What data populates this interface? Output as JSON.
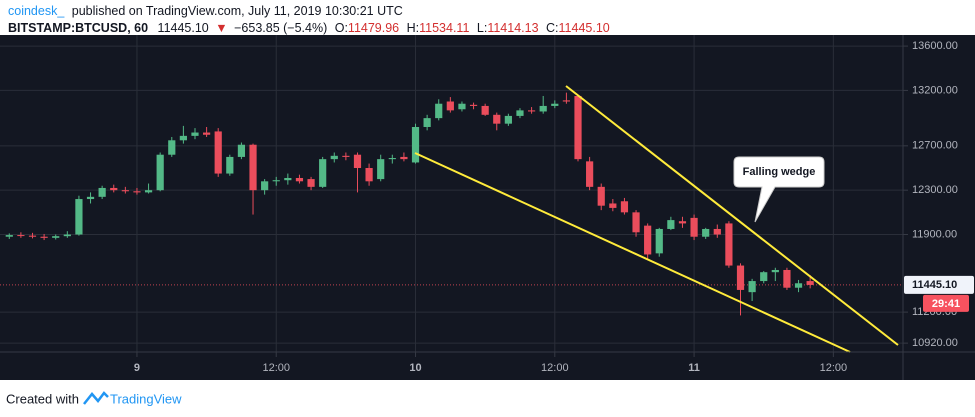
{
  "header": {
    "author": "coindesk_",
    "published": "published on TradingView.com, July 11, 2019 10:30:21 UTC",
    "symbol": "BITSTAMP:BTCUSD, 60",
    "last": "11445.10",
    "arrow": "▼",
    "change": "−653.85 (−5.4%)",
    "ohlc_labels": [
      "O:",
      "H:",
      "L:",
      "C:"
    ],
    "ohlc_values": [
      "11479.96",
      "11534.11",
      "11414.13",
      "11445.10"
    ]
  },
  "footer": {
    "created": "Created with",
    "brand": "TradingView"
  },
  "chart_data": {
    "type": "candlestick",
    "x": [
      -11,
      -10,
      -9,
      -8,
      -7,
      -6,
      -5,
      -4,
      -3,
      -2,
      -1,
      0,
      1,
      2,
      3,
      4,
      5,
      6,
      7,
      8,
      9,
      10,
      11,
      12,
      13,
      14,
      15,
      16,
      17,
      18,
      19,
      20,
      21,
      22,
      23,
      24,
      25,
      26,
      27,
      28,
      29,
      30,
      31,
      32,
      33,
      34,
      35,
      36,
      37,
      38,
      39,
      40,
      41,
      42,
      43,
      44,
      45,
      46,
      47,
      48,
      49,
      50,
      51,
      52,
      53,
      54,
      55,
      56,
      57,
      58
    ],
    "open": [
      11880,
      11895,
      11890,
      11880,
      11870,
      11885,
      11900,
      12220,
      12240,
      12320,
      12300,
      12290,
      12280,
      12300,
      12620,
      12750,
      12790,
      12820,
      12830,
      12450,
      12600,
      12710,
      12300,
      12380,
      12390,
      12410,
      12400,
      12330,
      12580,
      12610,
      12620,
      12500,
      12400,
      12580,
      12600,
      12550,
      12870,
      12950,
      13100,
      13030,
      13070,
      13060,
      12980,
      12900,
      12970,
      13020,
      13010,
      13060,
      13110,
      13150,
      12560,
      12330,
      12180,
      12200,
      12100,
      11980,
      11730,
      11950,
      12020,
      12050,
      11880,
      11950,
      12000,
      11620,
      11380,
      11480,
      11560,
      11580,
      11420,
      11479.96
    ],
    "high": [
      11910,
      11920,
      11915,
      11905,
      11900,
      11930,
      12250,
      12280,
      12340,
      12350,
      12330,
      12320,
      12360,
      12640,
      12780,
      12880,
      12860,
      12870,
      12860,
      12620,
      12730,
      12720,
      12400,
      12420,
      12450,
      12440,
      12420,
      12600,
      12640,
      12640,
      12640,
      12540,
      12620,
      12620,
      12640,
      12900,
      12980,
      13120,
      13140,
      13100,
      13090,
      13080,
      13000,
      12990,
      13040,
      13050,
      13150,
      13110,
      13180,
      13160,
      12600,
      12360,
      12220,
      12230,
      12120,
      12000,
      11960,
      12060,
      12060,
      12080,
      11960,
      11990,
      12020,
      11640,
      11500,
      11570,
      11600,
      11600,
      11490,
      11534.11
    ],
    "low": [
      11860,
      11870,
      11865,
      11850,
      11855,
      11870,
      11890,
      12180,
      12220,
      12280,
      12270,
      12260,
      12270,
      12290,
      12600,
      12720,
      12760,
      12780,
      12420,
      12430,
      12580,
      12080,
      12260,
      12340,
      12350,
      12360,
      12300,
      12320,
      12550,
      12570,
      12280,
      12340,
      12380,
      12540,
      12560,
      12540,
      12840,
      12930,
      13000,
      13010,
      13030,
      12970,
      12840,
      12880,
      12950,
      12990,
      12990,
      13040,
      13080,
      12560,
      12300,
      12120,
      12110,
      12080,
      11880,
      11680,
      11700,
      11940,
      11960,
      11850,
      11860,
      11870,
      11600,
      11170,
      11300,
      11460,
      11480,
      11400,
      11380,
      11414.13
    ],
    "close": [
      11895,
      11890,
      11880,
      11870,
      11885,
      11900,
      12220,
      12240,
      12320,
      12300,
      12290,
      12280,
      12300,
      12620,
      12750,
      12790,
      12820,
      12800,
      12450,
      12600,
      12710,
      12300,
      12380,
      12390,
      12410,
      12380,
      12330,
      12580,
      12610,
      12600,
      12500,
      12380,
      12580,
      12590,
      12580,
      12870,
      12950,
      13080,
      13020,
      13080,
      13060,
      12980,
      12900,
      12970,
      13020,
      13010,
      13060,
      13080,
      13100,
      12580,
      12330,
      12160,
      12140,
      12100,
      11920,
      11720,
      11950,
      12030,
      12000,
      11880,
      11950,
      11900,
      11620,
      11400,
      11480,
      11560,
      11580,
      11420,
      11460,
      11445.1
    ],
    "up_color": "#53b987",
    "down_color": "#eb4d5c",
    "xlim": [
      -11.8,
      66
    ],
    "ylim": [
      10840,
      13700
    ],
    "xticks": [
      {
        "value": 0,
        "label": "9"
      },
      {
        "value": 12,
        "label": "12:00"
      },
      {
        "value": 24,
        "label": "10"
      },
      {
        "value": 36,
        "label": "12:00"
      },
      {
        "value": 48,
        "label": "11"
      },
      {
        "value": 60,
        "label": "12:00"
      }
    ],
    "yticks": [
      {
        "value": 10920,
        "label": "10920.00"
      },
      {
        "value": 11200,
        "label": "11200.00"
      },
      {
        "value": 11900,
        "label": "11900.00"
      },
      {
        "value": 12300,
        "label": "12300.00"
      },
      {
        "value": 12700,
        "label": "12700.00"
      },
      {
        "value": 13200,
        "label": "13200.00"
      },
      {
        "value": 13600,
        "label": "13600.00"
      }
    ],
    "last_price": {
      "value": 11445.1,
      "label": "11445.10"
    },
    "countdown": "29:41",
    "annotation": "Falling wedge",
    "grid": true
  }
}
